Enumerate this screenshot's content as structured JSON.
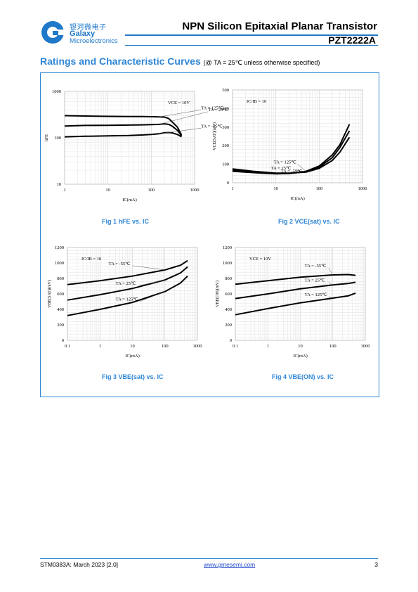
{
  "header": {
    "logo_cn": "银河微电子",
    "logo_en1": "Galaxy",
    "logo_en2": "Microelectronics",
    "title": "NPN Silicon Epitaxial Planar Transistor",
    "part": "PZT2222A"
  },
  "section": {
    "title": "Ratings and Characteristic Curves",
    "condition": "(@ TA = 25℃ unless otherwise specified)"
  },
  "figures": [
    {
      "caption": "Fig 1 hFE vs. IC"
    },
    {
      "caption": "Fig 2 VCE(sat) vs. IC"
    },
    {
      "caption": "Fig 3 VBE(sat) vs. IC"
    },
    {
      "caption": "Fig 4 VBE(ON) vs. IC"
    }
  ],
  "chart_data": [
    {
      "type": "line",
      "xscale": "log",
      "yscale": "log",
      "xlim": [
        1,
        1000
      ],
      "ylim": [
        10,
        1000
      ],
      "xticks": [
        "1",
        "10",
        "100",
        "1000"
      ],
      "yticks": [
        "10",
        "100",
        "1000"
      ],
      "xlabel": "IC(mA)",
      "ylabel": "hFE",
      "annotation": "VCE = 10V",
      "series": [
        {
          "name": "TA = 125℃",
          "x": [
            1,
            3,
            10,
            30,
            60,
            100,
            150,
            200,
            250,
            300,
            400,
            500
          ],
          "y": [
            300,
            295,
            290,
            288,
            288,
            285,
            282,
            280,
            262,
            222,
            170,
            115
          ]
        },
        {
          "name": "TA = 25℃",
          "x": [
            1,
            3,
            10,
            30,
            60,
            100,
            150,
            200,
            250,
            300,
            400,
            500
          ],
          "y": [
            180,
            185,
            186,
            188,
            190,
            192,
            195,
            200,
            195,
            180,
            145,
            110
          ]
        },
        {
          "name": "TA = -55℃",
          "x": [
            1,
            3,
            10,
            30,
            60,
            100,
            150,
            200,
            250,
            300,
            400,
            500
          ],
          "y": [
            105,
            108,
            110,
            112,
            115,
            118,
            122,
            128,
            130,
            128,
            118,
            105
          ]
        }
      ]
    },
    {
      "type": "line",
      "xscale": "log",
      "yscale": "linear",
      "xlim": [
        1,
        1000
      ],
      "ylim": [
        0,
        500
      ],
      "xticks": [
        "1",
        "10",
        "100",
        "1000"
      ],
      "yticks": [
        "0",
        "100",
        "200",
        "300",
        "400",
        "500"
      ],
      "xlabel": "IC(mA)",
      "ylabel": "VCE(SAT)(mV)",
      "annotation": "IC/IB = 10",
      "series": [
        {
          "name": "TA = 125℃",
          "x": [
            1,
            3,
            10,
            20,
            50,
            100,
            200,
            300,
            500
          ],
          "y": [
            62,
            55,
            48,
            50,
            62,
            90,
            150,
            205,
            315
          ]
        },
        {
          "name": "TA = 25℃",
          "x": [
            1,
            3,
            10,
            20,
            50,
            100,
            200,
            300,
            500
          ],
          "y": [
            68,
            58,
            50,
            50,
            60,
            85,
            135,
            190,
            280
          ]
        },
        {
          "name": "TA = -55℃",
          "x": [
            1,
            3,
            10,
            20,
            50,
            100,
            200,
            300,
            500
          ],
          "y": [
            75,
            62,
            52,
            52,
            58,
            78,
            120,
            165,
            245
          ]
        }
      ]
    },
    {
      "type": "line",
      "xscale": "log",
      "yscale": "linear",
      "xlim": [
        0.1,
        1000
      ],
      "ylim": [
        0,
        1200
      ],
      "xticks": [
        "0.1",
        "1",
        "10",
        "100",
        "1000"
      ],
      "yticks": [
        "0",
        "200",
        "400",
        "600",
        "800",
        "1000",
        "1200"
      ],
      "xlabel": "IC(mA)",
      "ylabel": "VBE(SAT)(mV)",
      "annotation": "IC/IB = 10",
      "series": [
        {
          "name": "TA = -55℃",
          "x": [
            0.1,
            1,
            10,
            100,
            300,
            500
          ],
          "y": [
            720,
            770,
            830,
            910,
            970,
            1030
          ]
        },
        {
          "name": "TA = 25℃",
          "x": [
            0.1,
            1,
            10,
            100,
            300,
            500
          ],
          "y": [
            520,
            590,
            670,
            780,
            870,
            950
          ]
        },
        {
          "name": "TA = 125℃",
          "x": [
            0.1,
            1,
            10,
            100,
            300,
            500
          ],
          "y": [
            320,
            400,
            490,
            630,
            740,
            830
          ]
        }
      ]
    },
    {
      "type": "line",
      "xscale": "log",
      "yscale": "linear",
      "xlim": [
        0.1,
        1000
      ],
      "ylim": [
        0,
        1200
      ],
      "xticks": [
        "0.1",
        "1",
        "10",
        "100",
        "1000"
      ],
      "yticks": [
        "0",
        "200",
        "400",
        "600",
        "800",
        "1000",
        "1200"
      ],
      "xlabel": "IC(mA)",
      "ylabel": "VBE(ON)(mV)",
      "annotation": "VCE = 10V",
      "series": [
        {
          "name": "TA = -55℃",
          "x": [
            0.1,
            1,
            10,
            100,
            300,
            500
          ],
          "y": [
            725,
            770,
            815,
            845,
            850,
            840
          ]
        },
        {
          "name": "TA = 25℃",
          "x": [
            0.1,
            1,
            10,
            100,
            300,
            500
          ],
          "y": [
            540,
            600,
            665,
            715,
            735,
            750
          ]
        },
        {
          "name": "TA = 125℃",
          "x": [
            0.1,
            1,
            10,
            100,
            300,
            500
          ],
          "y": [
            330,
            410,
            485,
            545,
            575,
            610
          ]
        }
      ]
    }
  ],
  "footer": {
    "doc": "STM0383A: March 2023 [2.0]",
    "url": "www.gmesemi.com",
    "page": "3"
  }
}
